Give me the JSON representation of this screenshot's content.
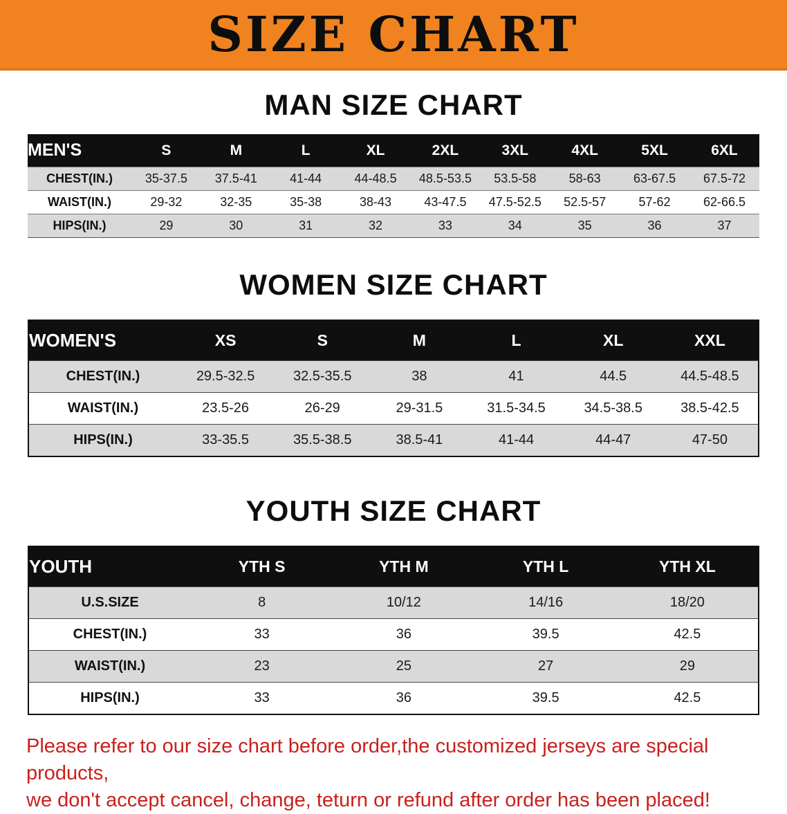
{
  "banner": {
    "title": "SIZE CHART",
    "bg_color": "#f0831f",
    "text_color": "#0d0d0d"
  },
  "colors": {
    "table_header_bg": "#0f0f0f",
    "table_header_text": "#ffffff",
    "shaded_row_bg": "#d9d9d9",
    "footer_text": "#c9201d"
  },
  "sections": [
    {
      "heading": "MAN SIZE CHART",
      "table": {
        "label": "MEN'S",
        "columns": [
          "S",
          "M",
          "L",
          "XL",
          "2XL",
          "3XL",
          "4XL",
          "5XL",
          "6XL"
        ],
        "rows": [
          {
            "label": "CHEST(IN.)",
            "values": [
              "35-37.5",
              "37.5-41",
              "41-44",
              "44-48.5",
              "48.5-53.5",
              "53.5-58",
              "58-63",
              "63-67.5",
              "67.5-72"
            ]
          },
          {
            "label": "WAIST(IN.)",
            "values": [
              "29-32",
              "32-35",
              "35-38",
              "38-43",
              "43-47.5",
              "47.5-52.5",
              "52.5-57",
              "57-62",
              "62-66.5"
            ]
          },
          {
            "label": "HIPS(IN.)",
            "values": [
              "29",
              "30",
              "31",
              "32",
              "33",
              "34",
              "35",
              "36",
              "37"
            ]
          }
        ]
      }
    },
    {
      "heading": "WOMEN SIZE CHART",
      "table": {
        "label": "WOMEN'S",
        "columns": [
          "XS",
          "S",
          "M",
          "L",
          "XL",
          "XXL"
        ],
        "rows": [
          {
            "label": "CHEST(IN.)",
            "values": [
              "29.5-32.5",
              "32.5-35.5",
              "38",
              "41",
              "44.5",
              "44.5-48.5"
            ]
          },
          {
            "label": "WAIST(IN.)",
            "values": [
              "23.5-26",
              "26-29",
              "29-31.5",
              "31.5-34.5",
              "34.5-38.5",
              "38.5-42.5"
            ]
          },
          {
            "label": "HIPS(IN.)",
            "values": [
              "33-35.5",
              "35.5-38.5",
              "38.5-41",
              "41-44",
              "44-47",
              "47-50"
            ]
          }
        ]
      }
    },
    {
      "heading": "YOUTH SIZE CHART",
      "table": {
        "label": "YOUTH",
        "columns": [
          "YTH S",
          "YTH M",
          "YTH L",
          "YTH XL"
        ],
        "rows": [
          {
            "label": "U.S.SIZE",
            "values": [
              "8",
              "10/12",
              "14/16",
              "18/20"
            ]
          },
          {
            "label": "CHEST(IN.)",
            "values": [
              "33",
              "36",
              "39.5",
              "42.5"
            ]
          },
          {
            "label": "WAIST(IN.)",
            "values": [
              "23",
              "25",
              "27",
              "29"
            ]
          },
          {
            "label": "HIPS(IN.)",
            "values": [
              "33",
              "36",
              "39.5",
              "42.5"
            ]
          }
        ]
      }
    }
  ],
  "footer": {
    "line1": "Please refer to our size chart before order,the customized jerseys are special products,",
    "line2": "we don't accept cancel, change, teturn or refund after order has been placed!"
  }
}
